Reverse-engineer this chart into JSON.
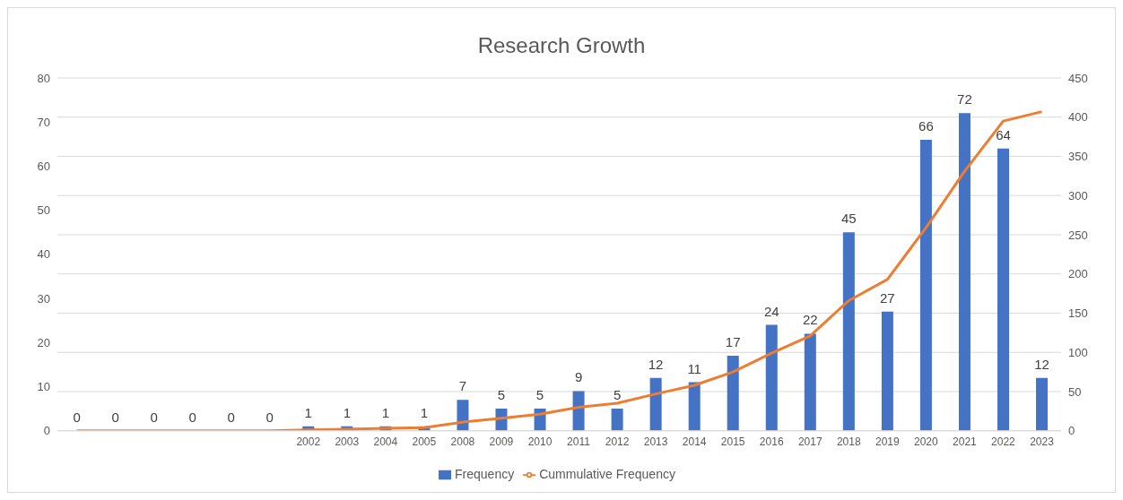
{
  "chart_data": {
    "type": "bar",
    "title": "Research Growth",
    "categories": [
      null,
      null,
      null,
      null,
      null,
      null,
      "2002",
      "2003",
      "2004",
      "2005",
      "2008",
      "2009",
      "2010",
      "2011",
      "2012",
      "2013",
      "2014",
      "2015",
      "2016",
      "2017",
      "2018",
      "2019",
      "2020",
      "2021",
      "2022",
      "2023"
    ],
    "series": [
      {
        "name": "Frequency",
        "color": "#4472c4",
        "values": [
          0,
          0,
          0,
          0,
          0,
          0,
          1,
          1,
          1,
          1,
          7,
          5,
          5,
          9,
          5,
          12,
          11,
          17,
          24,
          22,
          45,
          27,
          66,
          72,
          64,
          12
        ],
        "value_labels": [
          "0",
          "0",
          "0",
          "0",
          "0",
          "0",
          "1",
          "1",
          "1",
          "1",
          "7",
          "5",
          "5",
          "9",
          "5",
          "12",
          "11",
          "17",
          "24",
          "22",
          "45",
          "27",
          "66",
          "72",
          "64",
          "12"
        ]
      },
      {
        "name": "Cummulative Frequency",
        "type": "line",
        "axis": "y2",
        "color": "#ed7d31",
        "values": [
          0,
          0,
          0,
          0,
          0,
          0,
          1,
          2,
          3,
          4,
          11,
          16,
          21,
          30,
          35,
          47,
          58,
          75,
          99,
          121,
          166,
          193,
          259,
          331,
          395,
          407
        ]
      }
    ],
    "ylim": [
      0,
      80
    ],
    "yticks": [
      0,
      10,
      20,
      30,
      40,
      50,
      60,
      70,
      80
    ],
    "y2lim": [
      0,
      450
    ],
    "y2ticks": [
      0,
      50,
      100,
      150,
      200,
      250,
      300,
      350,
      400,
      450
    ],
    "grid": "y",
    "legend": "bottom",
    "marker": "none",
    "line_style": "solid"
  }
}
